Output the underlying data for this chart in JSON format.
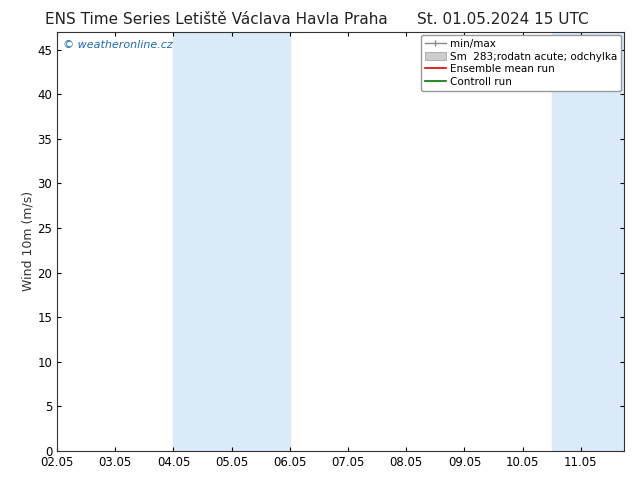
{
  "title_left": "ENS Time Series Letiště Václava Havla Praha",
  "title_right": "St. 01.05.2024 15 UTC",
  "ylabel": "Wind 10m (m/s)",
  "xlabel_ticks": [
    "02.05",
    "03.05",
    "04.05",
    "05.05",
    "06.05",
    "07.05",
    "08.05",
    "09.05",
    "10.05",
    "11.05"
  ],
  "ylim": [
    0,
    47
  ],
  "yticks": [
    0,
    5,
    10,
    15,
    20,
    25,
    30,
    35,
    40,
    45
  ],
  "background_color": "#ffffff",
  "plot_bg_color": "#ffffff",
  "shaded_bands": [
    {
      "xmin": 4.0,
      "xmax": 6.0,
      "color": "#daeaf8"
    },
    {
      "xmin": 10.5,
      "xmax": 11.75,
      "color": "#daeaf8"
    }
  ],
  "watermark_text": "© weatheronline.cz",
  "watermark_color": "#1a6ab5",
  "x_tick_positions": [
    2.0,
    3.0,
    4.0,
    5.0,
    6.0,
    7.0,
    8.0,
    9.0,
    10.0,
    11.0
  ],
  "x_start": 2.0,
  "x_end": 11.75,
  "title_fontsize": 11,
  "axis_fontsize": 9,
  "tick_fontsize": 8.5,
  "legend_fontsize": 7.5
}
